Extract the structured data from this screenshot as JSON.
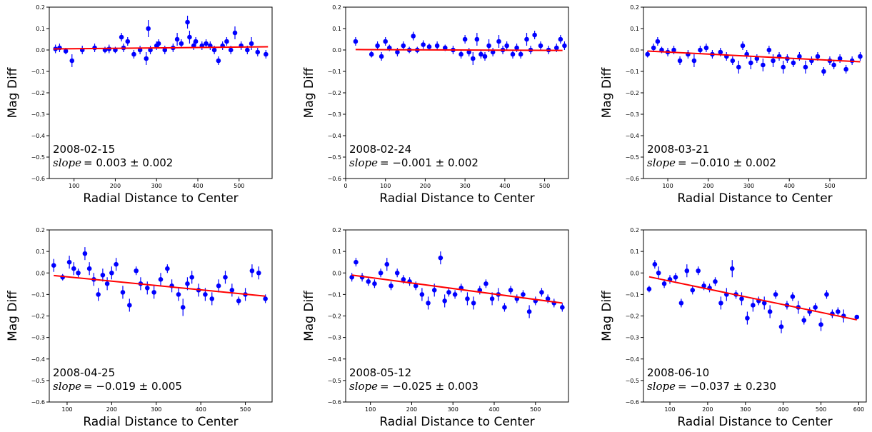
{
  "figure": {
    "colors": {
      "points": "#0000ff",
      "fit": "#ff0000",
      "axes": "#000000"
    }
  },
  "chart_data": [
    {
      "type": "scatter",
      "xlabel": "Radial Distance to Center",
      "ylabel": "Mag Diff",
      "ylim": [
        -0.6,
        0.2
      ],
      "yticks": [
        "0.2",
        "0.1",
        "0.0",
        "−0.1",
        "−0.2",
        "−0.3",
        "−0.4",
        "−0.5",
        "−0.6"
      ],
      "xlim": [
        40,
        580
      ],
      "xticks": [
        "100",
        "200",
        "300",
        "400",
        "500"
      ],
      "xtick_values": [
        100,
        200,
        300,
        400,
        500
      ],
      "date": "2008-02-15",
      "slope_label": "slope",
      "slope_text": "= 0.003 ± 0.002",
      "fit": {
        "x": [
          50,
          570
        ],
        "y": [
          0.005,
          0.015
        ]
      },
      "points": {
        "x": [
          55,
          65,
          80,
          95,
          120,
          150,
          175,
          185,
          200,
          215,
          220,
          230,
          245,
          260,
          275,
          280,
          285,
          300,
          305,
          320,
          340,
          350,
          360,
          375,
          380,
          390,
          395,
          410,
          420,
          430,
          440,
          450,
          460,
          470,
          480,
          490,
          505,
          520,
          530,
          545,
          565
        ],
        "y": [
          0.005,
          0.01,
          -0.005,
          -0.05,
          0.0,
          0.01,
          0.0,
          0.005,
          0.0,
          0.06,
          0.01,
          0.04,
          -0.02,
          0.0,
          -0.04,
          0.1,
          0.0,
          0.02,
          0.03,
          0.0,
          0.01,
          0.05,
          0.03,
          0.13,
          0.06,
          0.02,
          0.04,
          0.02,
          0.03,
          0.02,
          0.0,
          -0.05,
          0.02,
          0.04,
          0.0,
          0.08,
          0.02,
          0.0,
          0.03,
          -0.01,
          -0.02
        ],
        "err": [
          0.02,
          0.02,
          0.015,
          0.03,
          0.02,
          0.02,
          0.015,
          0.02,
          0.015,
          0.02,
          0.02,
          0.02,
          0.02,
          0.02,
          0.03,
          0.04,
          0.02,
          0.02,
          0.02,
          0.02,
          0.02,
          0.03,
          0.02,
          0.03,
          0.03,
          0.02,
          0.02,
          0.02,
          0.02,
          0.02,
          0.02,
          0.02,
          0.02,
          0.02,
          0.02,
          0.03,
          0.02,
          0.02,
          0.03,
          0.02,
          0.02
        ]
      }
    },
    {
      "type": "scatter",
      "xlabel": "Radial Distance to Center",
      "ylabel": "Mag Diff",
      "ylim": [
        -0.6,
        0.2
      ],
      "yticks": [
        "0.2",
        "0.1",
        "0.0",
        "−0.1",
        "−0.2",
        "−0.3",
        "−0.4",
        "−0.5",
        "−0.6"
      ],
      "xlim": [
        0,
        560
      ],
      "xticks": [
        "0",
        "100",
        "200",
        "300",
        "400",
        "500"
      ],
      "xtick_values": [
        0,
        100,
        200,
        300,
        400,
        500
      ],
      "date": "2008-02-24",
      "slope_label": "slope",
      "slope_text": "= −0.001 ± 0.002",
      "fit": {
        "x": [
          25,
          545
        ],
        "y": [
          0.002,
          -0.002
        ]
      },
      "points": {
        "x": [
          25,
          65,
          80,
          90,
          100,
          110,
          130,
          145,
          160,
          170,
          180,
          195,
          210,
          230,
          250,
          270,
          290,
          300,
          310,
          320,
          330,
          340,
          350,
          360,
          370,
          385,
          395,
          405,
          420,
          430,
          440,
          455,
          465,
          475,
          490,
          510,
          530,
          540,
          550
        ],
        "y": [
          0.04,
          -0.02,
          0.02,
          -0.03,
          0.04,
          0.01,
          -0.01,
          0.02,
          0.0,
          0.065,
          0.0,
          0.025,
          0.015,
          0.02,
          0.01,
          0.0,
          -0.02,
          0.05,
          -0.01,
          -0.04,
          0.05,
          -0.02,
          -0.03,
          0.02,
          -0.01,
          0.04,
          0.0,
          0.02,
          -0.02,
          0.01,
          -0.02,
          0.05,
          0.0,
          0.07,
          0.02,
          0.0,
          0.01,
          0.05,
          0.02
        ],
        "err": [
          0.02,
          0.015,
          0.02,
          0.02,
          0.02,
          0.015,
          0.02,
          0.02,
          0.015,
          0.02,
          0.015,
          0.02,
          0.015,
          0.02,
          0.015,
          0.02,
          0.02,
          0.02,
          0.02,
          0.03,
          0.03,
          0.02,
          0.02,
          0.03,
          0.02,
          0.03,
          0.02,
          0.02,
          0.02,
          0.02,
          0.02,
          0.03,
          0.02,
          0.02,
          0.02,
          0.02,
          0.02,
          0.02,
          0.02
        ]
      }
    },
    {
      "type": "scatter",
      "xlabel": "Radial Distance to Center",
      "ylabel": "Mag Diff",
      "ylim": [
        -0.6,
        0.2
      ],
      "yticks": [
        "0.2",
        "0.1",
        "0.0",
        "−0.1",
        "−0.2",
        "−0.3",
        "−0.4",
        "−0.5",
        "−0.6"
      ],
      "xlim": [
        40,
        590
      ],
      "xticks": [
        "100",
        "200",
        "300",
        "400",
        "500"
      ],
      "xtick_values": [
        100,
        200,
        300,
        400,
        500
      ],
      "date": "2008-03-21",
      "slope_label": "slope",
      "slope_text": "= −0.010 ± 0.002",
      "fit": {
        "x": [
          50,
          575
        ],
        "y": [
          -0.005,
          -0.055
        ]
      },
      "points": {
        "x": [
          50,
          65,
          75,
          85,
          100,
          115,
          130,
          150,
          165,
          180,
          195,
          210,
          230,
          245,
          260,
          275,
          285,
          295,
          305,
          320,
          335,
          350,
          360,
          375,
          385,
          395,
          410,
          425,
          440,
          455,
          470,
          485,
          500,
          510,
          525,
          540,
          555,
          575
        ],
        "y": [
          -0.02,
          0.01,
          0.04,
          0.0,
          -0.01,
          0.0,
          -0.05,
          -0.02,
          -0.05,
          0.0,
          0.01,
          -0.02,
          -0.01,
          -0.03,
          -0.05,
          -0.08,
          0.02,
          -0.02,
          -0.06,
          -0.04,
          -0.07,
          0.0,
          -0.05,
          -0.03,
          -0.08,
          -0.04,
          -0.06,
          -0.03,
          -0.08,
          -0.05,
          -0.03,
          -0.1,
          -0.05,
          -0.07,
          -0.04,
          -0.09,
          -0.05,
          -0.03
        ],
        "err": [
          0.015,
          0.02,
          0.02,
          0.015,
          0.02,
          0.02,
          0.02,
          0.02,
          0.03,
          0.02,
          0.02,
          0.02,
          0.02,
          0.02,
          0.02,
          0.03,
          0.02,
          0.02,
          0.03,
          0.02,
          0.03,
          0.02,
          0.03,
          0.02,
          0.03,
          0.02,
          0.02,
          0.02,
          0.03,
          0.02,
          0.02,
          0.02,
          0.02,
          0.02,
          0.02,
          0.02,
          0.02,
          0.02
        ]
      }
    },
    {
      "type": "scatter",
      "xlabel": "Radial Distance to Center",
      "ylabel": "Mag Diff",
      "ylim": [
        -0.6,
        0.2
      ],
      "yticks": [
        "0.2",
        "0.1",
        "0.0",
        "−0.1",
        "−0.2",
        "−0.3",
        "−0.4",
        "−0.5",
        "−0.6"
      ],
      "xlim": [
        60,
        560
      ],
      "xticks": [
        "100",
        "200",
        "300",
        "400",
        "500"
      ],
      "xtick_values": [
        100,
        200,
        300,
        400,
        500
      ],
      "date": "2008-04-25",
      "slope_label": "slope",
      "slope_text": "= −0.019 ± 0.005",
      "fit": {
        "x": [
          70,
          545
        ],
        "y": [
          -0.012,
          -0.108
        ]
      },
      "points": {
        "x": [
          70,
          90,
          105,
          115,
          125,
          140,
          150,
          160,
          170,
          180,
          190,
          200,
          210,
          225,
          240,
          255,
          265,
          280,
          295,
          310,
          325,
          335,
          350,
          360,
          370,
          380,
          395,
          410,
          425,
          440,
          455,
          470,
          485,
          500,
          515,
          530,
          545
        ],
        "y": [
          0.035,
          -0.02,
          0.05,
          0.02,
          0.0,
          0.09,
          0.02,
          -0.03,
          -0.1,
          -0.01,
          -0.05,
          0.0,
          0.04,
          -0.09,
          -0.15,
          0.01,
          -0.05,
          -0.07,
          -0.09,
          -0.03,
          0.02,
          -0.06,
          -0.1,
          -0.16,
          -0.05,
          -0.02,
          -0.08,
          -0.1,
          -0.12,
          -0.06,
          -0.02,
          -0.08,
          -0.13,
          -0.1,
          0.01,
          0.0,
          -0.12
        ],
        "err": [
          0.03,
          0.015,
          0.03,
          0.03,
          0.02,
          0.03,
          0.03,
          0.03,
          0.03,
          0.03,
          0.03,
          0.03,
          0.03,
          0.03,
          0.03,
          0.02,
          0.03,
          0.03,
          0.03,
          0.03,
          0.02,
          0.03,
          0.03,
          0.04,
          0.03,
          0.03,
          0.03,
          0.03,
          0.03,
          0.03,
          0.03,
          0.03,
          0.02,
          0.03,
          0.03,
          0.03,
          0.02
        ]
      }
    },
    {
      "type": "scatter",
      "xlabel": "Radial Distance to Center",
      "ylabel": "Mag Diff",
      "ylim": [
        -0.6,
        0.2
      ],
      "yticks": [
        "0.2",
        "0.1",
        "0.0",
        "−0.1",
        "−0.2",
        "−0.3",
        "−0.4",
        "−0.5",
        "−0.6"
      ],
      "xlim": [
        40,
        580
      ],
      "xticks": [
        "100",
        "200",
        "300",
        "400",
        "500"
      ],
      "xtick_values": [
        100,
        200,
        300,
        400,
        500
      ],
      "date": "2008-05-12",
      "slope_label": "slope",
      "slope_text": "= −0.025 ± 0.003",
      "fit": {
        "x": [
          55,
          565
        ],
        "y": [
          -0.01,
          -0.14
        ]
      },
      "points": {
        "x": [
          55,
          65,
          80,
          95,
          110,
          125,
          140,
          150,
          165,
          180,
          195,
          210,
          225,
          240,
          255,
          270,
          280,
          290,
          305,
          320,
          335,
          350,
          365,
          380,
          395,
          410,
          425,
          440,
          455,
          470,
          485,
          500,
          515,
          530,
          545,
          565
        ],
        "y": [
          -0.02,
          0.05,
          -0.02,
          -0.04,
          -0.05,
          0.0,
          0.04,
          -0.06,
          0.0,
          -0.03,
          -0.04,
          -0.06,
          -0.1,
          -0.14,
          -0.08,
          0.07,
          -0.13,
          -0.09,
          -0.1,
          -0.07,
          -0.12,
          -0.14,
          -0.08,
          -0.05,
          -0.12,
          -0.1,
          -0.16,
          -0.08,
          -0.12,
          -0.1,
          -0.18,
          -0.13,
          -0.09,
          -0.12,
          -0.14,
          -0.16
        ],
        "err": [
          0.02,
          0.02,
          0.02,
          0.02,
          0.02,
          0.02,
          0.03,
          0.02,
          0.02,
          0.02,
          0.02,
          0.02,
          0.03,
          0.03,
          0.03,
          0.03,
          0.03,
          0.02,
          0.02,
          0.02,
          0.03,
          0.03,
          0.02,
          0.02,
          0.03,
          0.03,
          0.02,
          0.02,
          0.02,
          0.02,
          0.03,
          0.02,
          0.02,
          0.02,
          0.02,
          0.02
        ]
      }
    },
    {
      "type": "scatter",
      "xlabel": "Radial Distance to Center",
      "ylabel": "Mag Diff",
      "ylim": [
        -0.6,
        0.2
      ],
      "yticks": [
        "0.2",
        "0.1",
        "0.0",
        "−0.1",
        "−0.2",
        "−0.3",
        "−0.4",
        "−0.5",
        "−0.6"
      ],
      "xlim": [
        30,
        620
      ],
      "xticks": [
        "100",
        "200",
        "300",
        "400",
        "500",
        "600"
      ],
      "xtick_values": [
        100,
        200,
        300,
        400,
        500,
        600
      ],
      "date": "2008-06-10",
      "slope_label": "slope",
      "slope_text": "= −0.037 ± 0.230",
      "fit": {
        "x": [
          45,
          595
        ],
        "y": [
          -0.018,
          -0.218
        ]
      },
      "points": {
        "x": [
          45,
          60,
          70,
          85,
          100,
          115,
          130,
          145,
          160,
          175,
          190,
          205,
          220,
          235,
          250,
          265,
          275,
          290,
          305,
          320,
          335,
          350,
          365,
          380,
          395,
          410,
          425,
          440,
          455,
          470,
          485,
          500,
          515,
          530,
          545,
          560,
          595
        ],
        "y": [
          -0.075,
          0.04,
          0.0,
          -0.05,
          -0.03,
          -0.02,
          -0.14,
          0.01,
          -0.08,
          0.01,
          -0.06,
          -0.07,
          -0.04,
          -0.14,
          -0.1,
          0.02,
          -0.1,
          -0.12,
          -0.21,
          -0.15,
          -0.13,
          -0.14,
          -0.18,
          -0.1,
          -0.25,
          -0.15,
          -0.11,
          -0.16,
          -0.22,
          -0.18,
          -0.16,
          -0.24,
          -0.1,
          -0.19,
          -0.18,
          -0.2,
          -0.205
        ],
        "err": [
          0.015,
          0.02,
          0.03,
          0.02,
          0.02,
          0.02,
          0.02,
          0.03,
          0.02,
          0.02,
          0.02,
          0.02,
          0.02,
          0.03,
          0.03,
          0.04,
          0.02,
          0.03,
          0.03,
          0.03,
          0.02,
          0.03,
          0.03,
          0.02,
          0.03,
          0.02,
          0.02,
          0.03,
          0.02,
          0.02,
          0.02,
          0.03,
          0.02,
          0.02,
          0.02,
          0.03,
          0.01
        ]
      }
    }
  ]
}
